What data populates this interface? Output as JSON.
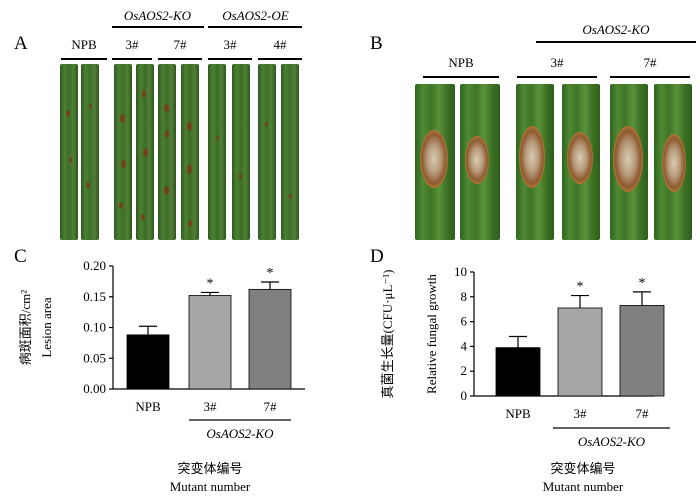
{
  "panelA": {
    "letter": "A",
    "group_npb": "NPB",
    "group_ko": "OsAOS2-KO",
    "group_oe": "OsAOS2-OE",
    "ko_lines": [
      "3#",
      "7#"
    ],
    "oe_lines": [
      "3#",
      "4#"
    ]
  },
  "panelB": {
    "letter": "B",
    "group_npb": "NPB",
    "group_ko": "OsAOS2-KO",
    "ko_lines": [
      "3#",
      "7#"
    ]
  },
  "chart_data": [
    {
      "panel": "C",
      "type": "bar",
      "categories": [
        "NPB",
        "3#",
        "7#"
      ],
      "values": [
        0.088,
        0.152,
        0.162
      ],
      "errors": [
        0.014,
        0.005,
        0.012
      ],
      "significance": [
        "",
        "*",
        "*"
      ],
      "bar_colors": [
        "#000000",
        "#a6a6a6",
        "#808080"
      ],
      "ylabel_cn": "病斑面积/cm²",
      "ylabel_en": "Lesion area",
      "ylim": [
        0,
        0.2
      ],
      "yticks": [
        "0.00",
        "0.05",
        "0.10",
        "0.15",
        "0.20"
      ],
      "group_label": "OsAOS2-KO",
      "xlabel_cn": "突变体编号",
      "xlabel_en": "Mutant number"
    },
    {
      "panel": "D",
      "type": "bar",
      "categories": [
        "NPB",
        "3#",
        "7#"
      ],
      "values": [
        3.9,
        7.1,
        7.3
      ],
      "errors": [
        0.9,
        1.0,
        1.1
      ],
      "significance": [
        "",
        "*",
        "*"
      ],
      "bar_colors": [
        "#000000",
        "#a6a6a6",
        "#808080"
      ],
      "ylabel_cn": "真菌生长量(CFU·μL⁻¹)",
      "ylabel_en": "Relative fungal growth",
      "ylim": [
        0,
        10
      ],
      "yticks": [
        "0",
        "2",
        "4",
        "6",
        "8",
        "10"
      ],
      "group_label": "OsAOS2-KO",
      "xlabel_cn": "突变体编号",
      "xlabel_en": "Mutant number"
    }
  ]
}
